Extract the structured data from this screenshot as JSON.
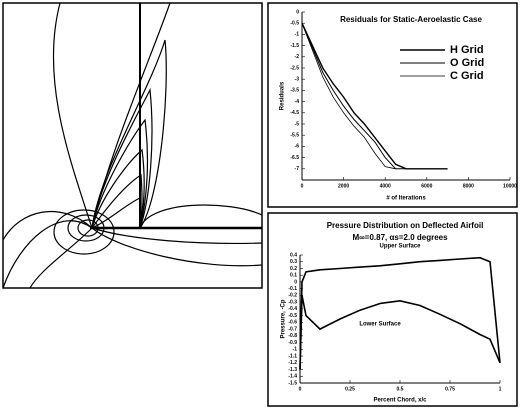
{
  "chart_data": [
    {
      "type": "line",
      "title": "Residuals for Static-Aeroelastic Case",
      "xlabel": "# of Iterations",
      "ylabel": "Residuals",
      "x": [
        0,
        500,
        1000,
        1500,
        2000,
        2500,
        3000,
        3500,
        4000,
        4500,
        5000,
        6000,
        7000
      ],
      "series": [
        {
          "name": "H Grid",
          "color": "#000000",
          "values": [
            -0.5,
            -1.5,
            -2.5,
            -3.2,
            -3.8,
            -4.5,
            -5.0,
            -5.6,
            -6.2,
            -6.8,
            -7.0,
            -7.0,
            -7.0
          ]
        },
        {
          "name": "O Grid",
          "color": "#000000",
          "values": [
            -0.5,
            -1.6,
            -2.7,
            -3.5,
            -4.2,
            -4.8,
            -5.3,
            -5.8,
            -6.5,
            -7.0,
            -7.0,
            null,
            null
          ]
        },
        {
          "name": "C Grid",
          "color": "#000000",
          "values": [
            -0.5,
            -1.7,
            -2.9,
            -3.8,
            -4.5,
            -5.1,
            -5.6,
            -6.3,
            -6.9,
            -7.0,
            null,
            null,
            null
          ]
        }
      ],
      "xlim": [
        0,
        10000
      ],
      "xticks": [
        0,
        2000,
        4000,
        6000,
        8000,
        10000
      ],
      "ylim": [
        -7.5,
        0
      ],
      "yticks": [
        0,
        -0.5,
        -1,
        -1.5,
        -2,
        -2.5,
        -3,
        -3.5,
        -4,
        -4.5,
        -5,
        -5.5,
        -6,
        -6.5,
        -7
      ],
      "legend": "upper-right"
    },
    {
      "type": "line",
      "title": "Pressure Distribution on Deflected Airfoil",
      "subtitle": "M∞=0.87, αs=2.0 degrees",
      "xlabel": "Percent Chord, x/c",
      "ylabel": "Pressure, -Cp",
      "x": [
        0,
        0.01,
        0.03,
        0.1,
        0.2,
        0.3,
        0.4,
        0.5,
        0.6,
        0.7,
        0.8,
        0.9,
        0.95,
        1
      ],
      "series": [
        {
          "name": "Upper Surface",
          "color": "#000000",
          "values": [
            -1.3,
            0.0,
            0.15,
            0.18,
            0.2,
            0.22,
            0.24,
            0.27,
            0.3,
            0.32,
            0.34,
            0.36,
            0.3,
            -1.2
          ]
        },
        {
          "name": "Lower Surface",
          "color": "#000000",
          "values": [
            -1.3,
            -0.2,
            -0.5,
            -0.7,
            -0.55,
            -0.42,
            -0.32,
            -0.28,
            -0.35,
            -0.48,
            -0.62,
            -0.78,
            -0.85,
            -1.2
          ]
        }
      ],
      "xlim": [
        0,
        1
      ],
      "xticks": [
        0,
        0.25,
        0.5,
        0.75,
        1
      ],
      "ylim": [
        -1.5,
        0.4
      ],
      "yticks": [
        0.4,
        0.3,
        0.2,
        0.1,
        0,
        -0.1,
        -0.2,
        -0.3,
        -0.4,
        -0.5,
        -0.6,
        -0.7,
        -0.8,
        -0.9,
        -1,
        -1.1,
        -1.2,
        -1.3,
        -1.4,
        -1.5
      ],
      "legend": "none"
    }
  ]
}
